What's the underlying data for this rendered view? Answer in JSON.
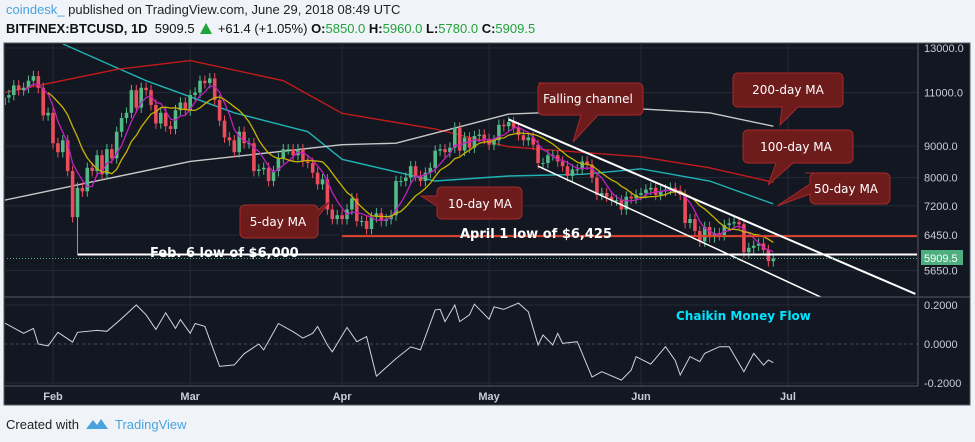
{
  "header": {
    "user": "coindesk_",
    "published": "published on TradingView.com, June 29, 2018 08:49 UTC",
    "symbol": "BITFINEX:BTCUSD, 1D",
    "last": "5909.5",
    "change": "+61.4 (+1.05%)",
    "o_label": "O:",
    "o": "5850.0",
    "h_label": "H:",
    "h": "5960.0",
    "l_label": "L:",
    "l": "5780.0",
    "c_label": "C:",
    "c": "5909.5"
  },
  "footer": {
    "created_with": "Created with",
    "brand": "TradingView",
    "logo_icon": "tradingview-logo-icon"
  },
  "colors": {
    "background": "#131722",
    "up": "#53b987",
    "down": "#eb4d5c",
    "ma5": "#c020c0",
    "ma10": "#c8b400",
    "ma50": "#1fb3b3",
    "ma100": "#c21b1b",
    "ma200": "#c8c8c8",
    "callout": "#6e1b1b",
    "cmf_label": "#00e5ff",
    "price_tag": "#4caf7d"
  },
  "chart_data": [
    {
      "type": "candlestick",
      "scale": "log",
      "grid": true,
      "start_date": "2018-01-22",
      "end_date": "2018-06-28",
      "ylim": [
        5100,
        13300
      ],
      "y_ticks": [
        "13000.0",
        "11000.0",
        "9000.0",
        "8000.0",
        "7200.0",
        "6450.0",
        "5650.0"
      ],
      "y_tick_values": [
        13000,
        11000,
        9000,
        8000,
        7200,
        6450,
        5650
      ],
      "x_ticks": [
        "Feb",
        "Mar",
        "Apr",
        "May",
        "Jun",
        "Jul"
      ],
      "x_tick_dates": [
        "02-01",
        "03-01",
        "04-01",
        "05-01",
        "06-01",
        "07-01"
      ],
      "last_price_label": "5909.5",
      "first_open": 10500,
      "closes": [
        10800,
        10900,
        11300,
        11100,
        11200,
        11500,
        11700,
        11200,
        10100,
        10200,
        9100,
        8800,
        9200,
        8200,
        6900,
        7700,
        7600,
        8300,
        8200,
        8700,
        8100,
        8900,
        8600,
        9500,
        10000,
        10200,
        11100,
        10400,
        11200,
        11100,
        10500,
        9800,
        10200,
        9700,
        9600,
        10300,
        10600,
        10300,
        10900,
        11000,
        11500,
        11400,
        11600,
        10700,
        9900,
        9300,
        9200,
        8800,
        9500,
        9100,
        9100,
        8200,
        8250,
        8300,
        7900,
        8200,
        8600,
        8900,
        8900,
        8700,
        8900,
        8500,
        8450,
        8150,
        7800,
        7950,
        7100,
        6850,
        6950,
        6850,
        7100,
        7400,
        6800,
        6800,
        6600,
        6900,
        7000,
        6800,
        6850,
        6950,
        7900,
        7900,
        8000,
        8350,
        8050,
        7900,
        8150,
        8300,
        8850,
        8900,
        8800,
        8950,
        9650,
        8850,
        9300,
        8950,
        9350,
        9400,
        9250,
        9050,
        9200,
        9750,
        9700,
        9850,
        9650,
        9380,
        9200,
        9300,
        9050,
        8450,
        8450,
        8700,
        8700,
        8500,
        8350,
        8050,
        8250,
        8250,
        8500,
        8400,
        8000,
        7500,
        7550,
        7450,
        7350,
        7350,
        7100,
        7450,
        7400,
        7500,
        7550,
        7650,
        7700,
        7500,
        7600,
        7650,
        7700,
        7620,
        7500,
        6750,
        6850,
        6550,
        6300,
        6650,
        6400,
        6500,
        6450,
        6700,
        6740,
        6770,
        6720,
        6050,
        6150,
        6200,
        6250,
        6100,
        5850,
        5909.5
      ],
      "moving_averages": [
        {
          "name": "5-day MA",
          "period": 5,
          "color_key": "ma5"
        },
        {
          "name": "10-day MA",
          "period": 10,
          "color_key": "ma10"
        },
        {
          "name": "50-day MA",
          "color_key": "ma50",
          "points": [
            [
              "02-03",
              13200
            ],
            [
              "02-20",
              11500
            ],
            [
              "03-10",
              10200
            ],
            [
              "03-25",
              9500
            ],
            [
              "04-01",
              8570
            ],
            [
              "04-20",
              7900
            ],
            [
              "05-05",
              8050
            ],
            [
              "05-20",
              8100
            ],
            [
              "06-01",
              8270
            ],
            [
              "06-15",
              7900
            ],
            [
              "06-28",
              7250
            ]
          ]
        },
        {
          "name": "100-day MA",
          "color_key": "ma100",
          "points": [
            [
              "01-22",
              11000
            ],
            [
              "02-14",
              12000
            ],
            [
              "03-01",
              12400
            ],
            [
              "03-20",
              11500
            ],
            [
              "04-01",
              10180
            ],
            [
              "04-20",
              9600
            ],
            [
              "05-05",
              8980
            ],
            [
              "06-01",
              8650
            ],
            [
              "06-15",
              8300
            ],
            [
              "06-28",
              7860
            ]
          ]
        },
        {
          "name": "200-day MA",
          "color_key": "ma200",
          "points": [
            [
              "01-22",
              7350
            ],
            [
              "03-01",
              8500
            ],
            [
              "04-01",
              9050
            ],
            [
              "04-12",
              9100
            ],
            [
              "05-05",
              10150
            ],
            [
              "06-01",
              10350
            ],
            [
              "06-15",
              10200
            ],
            [
              "06-28",
              9700
            ]
          ]
        }
      ],
      "annotations": {
        "feb6_low": {
          "label": "Feb. 6 low of $6,000",
          "price": 6000,
          "from": "02-06"
        },
        "apr1_low": {
          "label": "April 1 low of $6,425",
          "price": 6425,
          "from": "04-01"
        },
        "falling_channel": {
          "label": "Falling channel",
          "upper": [
            [
              "05-05",
              9950
            ],
            [
              "07-27",
              5175
            ]
          ],
          "lower": [
            [
              "05-11",
              8350
            ],
            [
              "07-08",
              5100
            ]
          ]
        },
        "callouts": {
          "ma5": "5-day MA",
          "ma10": "10-day MA",
          "ma50": "50-day MA",
          "ma100": "100-day MA",
          "ma200": "200-day MA"
        }
      }
    },
    {
      "type": "line",
      "title": "Chaikin Money Flow",
      "ylim": [
        -0.2,
        0.2
      ],
      "y_ticks": [
        "0.2000",
        "0.0000",
        "-0.2000"
      ],
      "y_tick_values": [
        0.2,
        0,
        -0.2
      ],
      "points": [
        [
          "01-22",
          0.11
        ],
        [
          "01-26",
          0.055
        ],
        [
          "01-28",
          0.08
        ],
        [
          "01-29",
          0
        ],
        [
          "01-31",
          -0.01
        ],
        [
          "02-02",
          0.06
        ],
        [
          "02-05",
          0.01
        ],
        [
          "02-06",
          0.06
        ],
        [
          "02-10",
          0.07
        ],
        [
          "02-12",
          0.065
        ],
        [
          "02-15",
          0.13
        ],
        [
          "02-18",
          0.2
        ],
        [
          "02-20",
          0.15
        ],
        [
          "02-22",
          0.075
        ],
        [
          "02-24",
          0.16
        ],
        [
          "02-26",
          0.08
        ],
        [
          "02-27",
          0.125
        ],
        [
          "03-01",
          0.055
        ],
        [
          "03-02",
          0.105
        ],
        [
          "03-04",
          0.09
        ],
        [
          "03-07",
          -0.115
        ],
        [
          "03-10",
          -0.107
        ],
        [
          "03-12",
          -0.05
        ],
        [
          "03-15",
          0
        ],
        [
          "03-16",
          -0.03
        ],
        [
          "03-19",
          0.105
        ],
        [
          "03-22",
          0.063
        ],
        [
          "03-24",
          0.03
        ],
        [
          "03-26",
          0.055
        ],
        [
          "03-27",
          0.09
        ],
        [
          "03-29",
          -0.005
        ],
        [
          "03-30",
          -0.04
        ],
        [
          "04-02",
          0.085
        ],
        [
          "04-04",
          0.012
        ],
        [
          "04-06",
          0.038
        ],
        [
          "04-08",
          -0.165
        ],
        [
          "04-12",
          -0.075
        ],
        [
          "04-15",
          -0.015
        ],
        [
          "04-17",
          -0.03
        ],
        [
          "04-20",
          0.175
        ],
        [
          "04-21",
          0.178
        ],
        [
          "04-22",
          0.115
        ],
        [
          "04-24",
          0.2
        ],
        [
          "04-25",
          0.115
        ],
        [
          "04-27",
          0.15
        ],
        [
          "04-28",
          0.204
        ],
        [
          "05-01",
          0.127
        ],
        [
          "05-02",
          0.19
        ],
        [
          "05-04",
          0.178
        ],
        [
          "05-07",
          0.21
        ],
        [
          "05-09",
          0.165
        ],
        [
          "05-11",
          -0.005
        ],
        [
          "05-12",
          0.046
        ],
        [
          "05-14",
          -0.005
        ],
        [
          "05-15",
          0.055
        ],
        [
          "05-16",
          0.003
        ],
        [
          "05-19",
          0.012
        ],
        [
          "05-22",
          -0.17
        ],
        [
          "05-24",
          -0.142
        ],
        [
          "05-28",
          -0.185
        ],
        [
          "05-30",
          -0.134
        ],
        [
          "05-31",
          -0.065
        ],
        [
          "06-03",
          -0.103
        ],
        [
          "06-06",
          -0.014
        ],
        [
          "06-08",
          -0.085
        ],
        [
          "06-09",
          -0.159
        ],
        [
          "06-11",
          -0.065
        ],
        [
          "06-13",
          -0.09
        ],
        [
          "06-14",
          -0.048
        ],
        [
          "06-17",
          -0.014
        ],
        [
          "06-19",
          -0.014
        ],
        [
          "06-22",
          -0.142
        ],
        [
          "06-24",
          -0.048
        ],
        [
          "06-26",
          -0.108
        ],
        [
          "06-27",
          -0.082
        ],
        [
          "06-28",
          -0.096
        ]
      ]
    }
  ]
}
